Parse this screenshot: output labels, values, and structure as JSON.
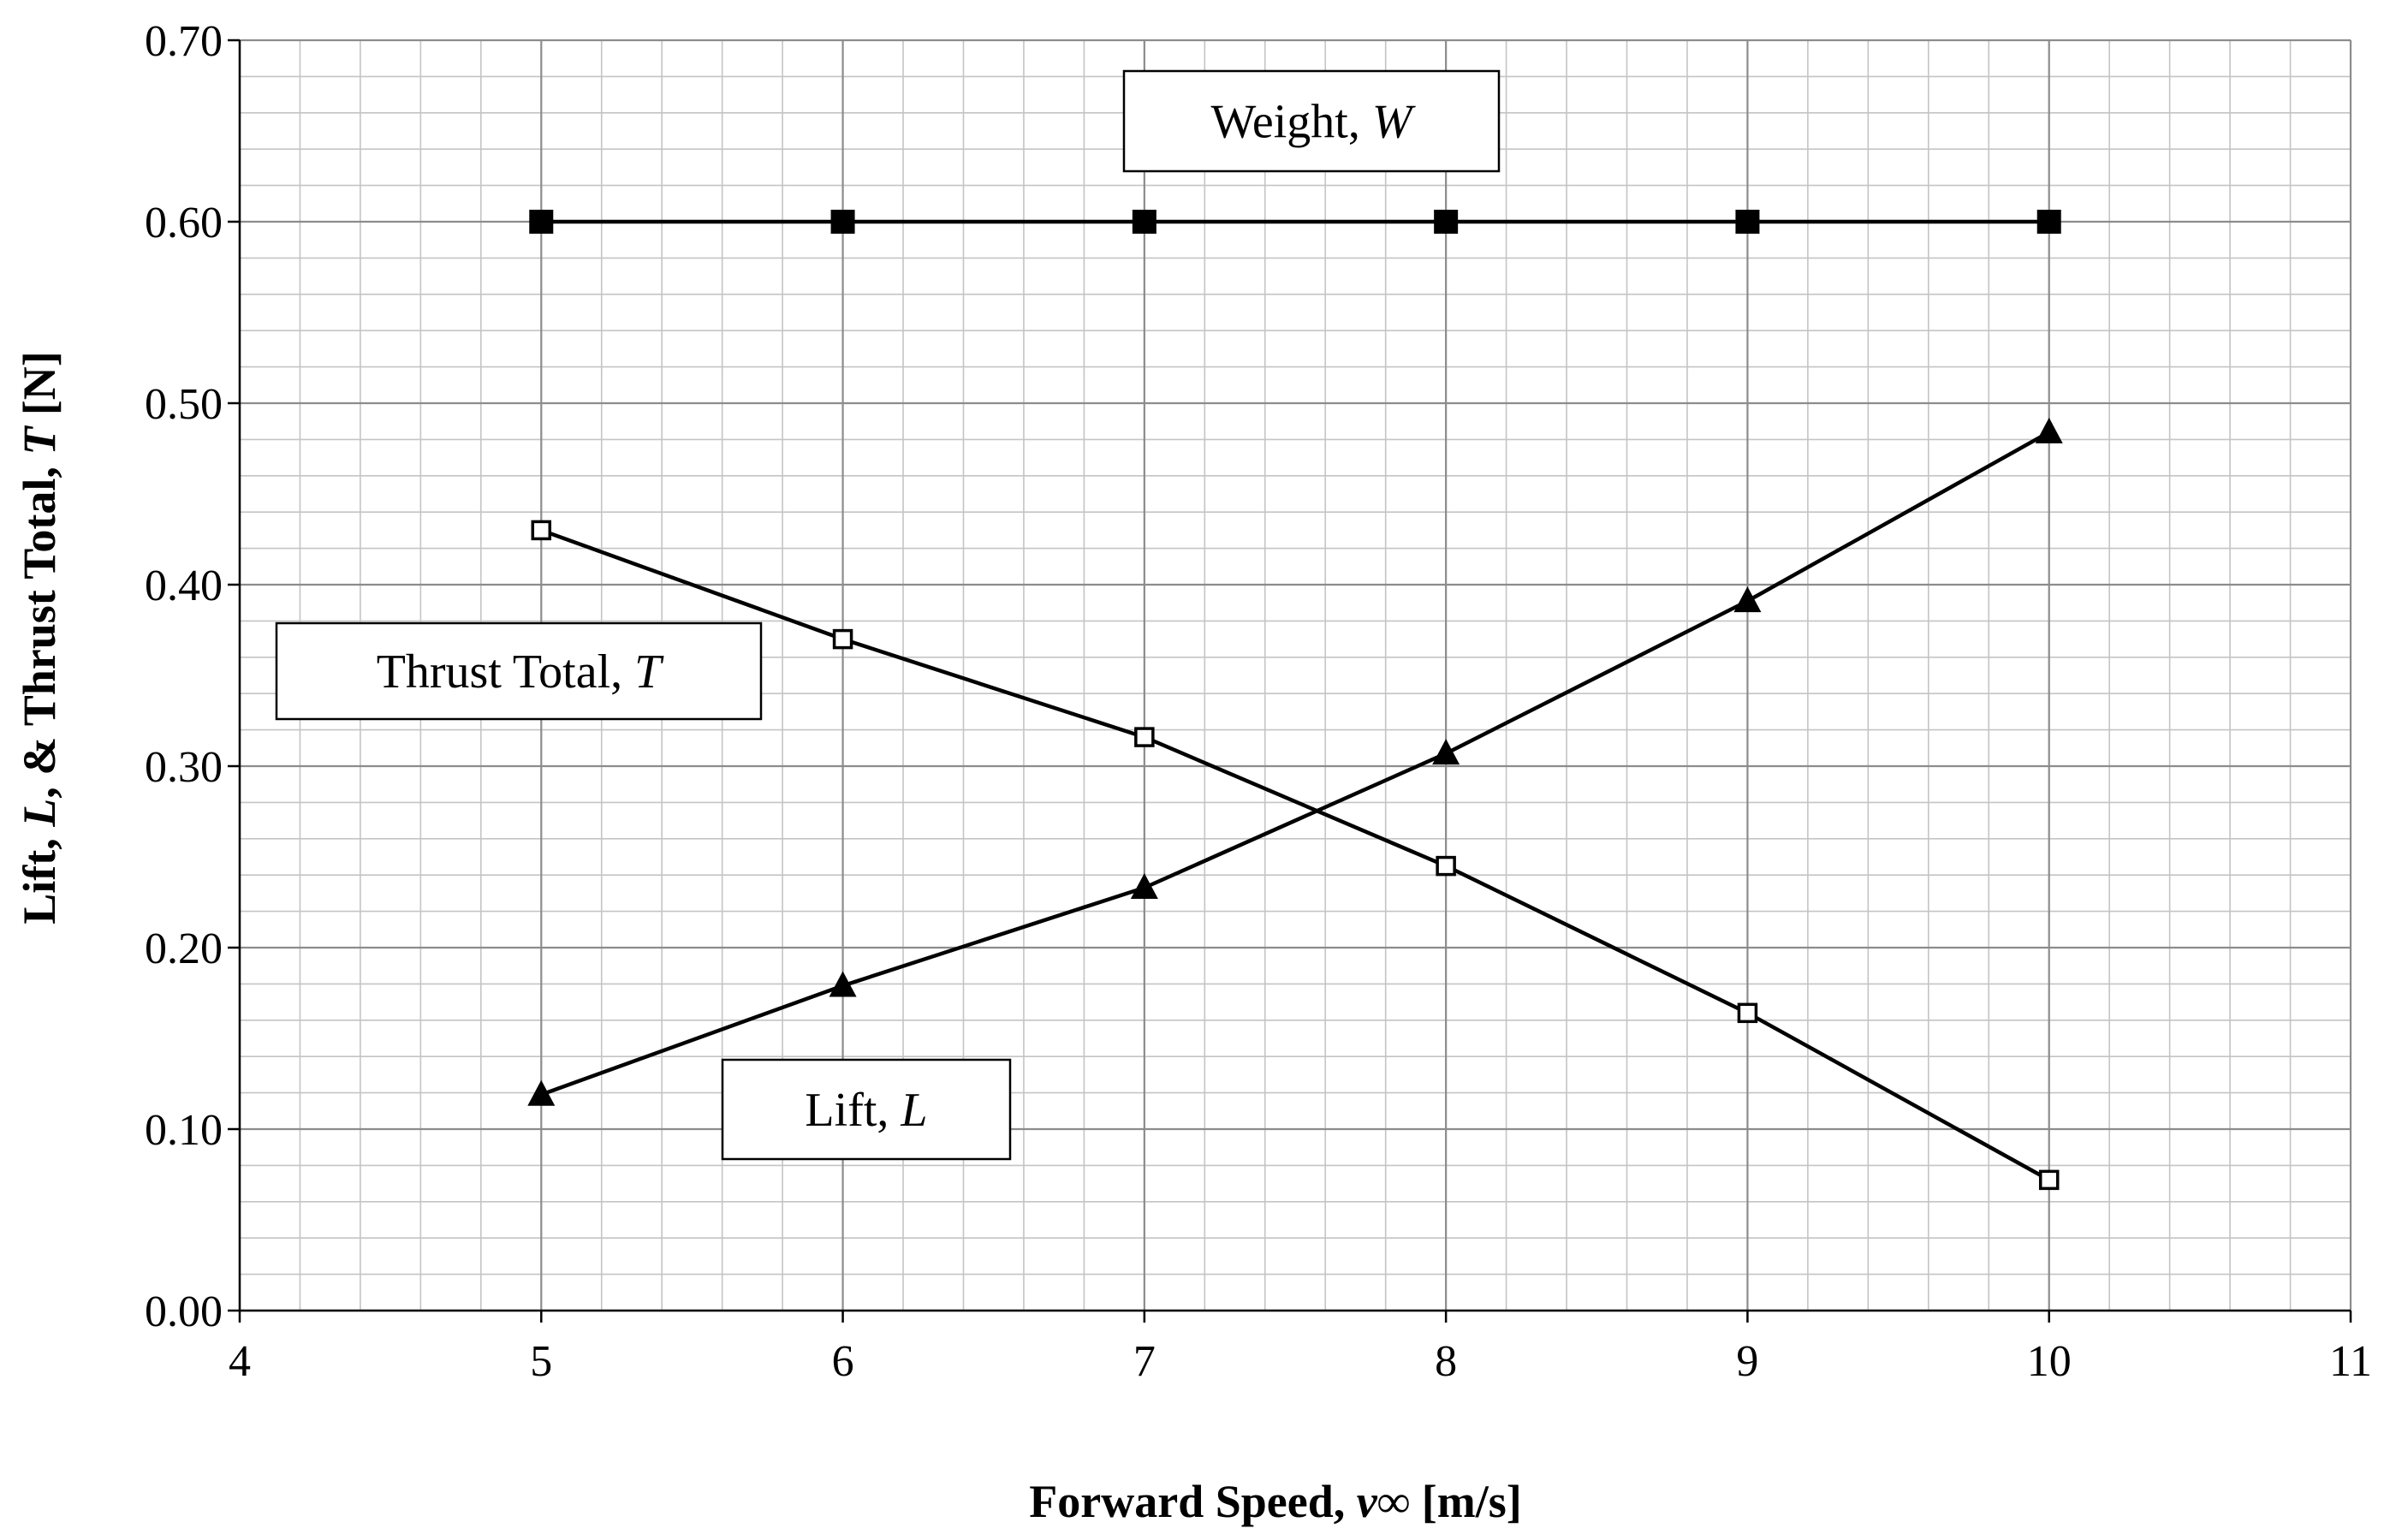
{
  "chart_data": {
    "type": "line",
    "xlabel": {
      "prefix": "Forward Speed, ",
      "var": "v",
      "sub": "∞",
      "suffix": " [m/s]"
    },
    "ylabel": {
      "p1": "Lift, ",
      "v1": "L",
      "p2": ", & Thrust Total, ",
      "v2": "T",
      "p3": " [N]"
    },
    "xlim": [
      4,
      11
    ],
    "ylim": [
      0,
      0.7
    ],
    "x_ticks": [
      "4",
      "5",
      "6",
      "7",
      "8",
      "9",
      "10",
      "11"
    ],
    "y_ticks": [
      "0.00",
      "0.10",
      "0.20",
      "0.30",
      "0.40",
      "0.50",
      "0.60",
      "0.70"
    ],
    "grid": true,
    "series": [
      {
        "name": "Weight, W",
        "marker": "filled-square",
        "x": [
          5,
          6,
          7,
          8,
          9,
          10
        ],
        "values": [
          0.6,
          0.6,
          0.6,
          0.6,
          0.6,
          0.6
        ]
      },
      {
        "name": "Thrust Total, T",
        "marker": "open-square",
        "x": [
          5,
          6,
          7,
          8,
          9,
          10
        ],
        "values": [
          0.43,
          0.37,
          0.316,
          0.245,
          0.164,
          0.072
        ]
      },
      {
        "name": "Lift, L",
        "marker": "filled-triangle",
        "x": [
          5,
          6,
          7,
          8,
          9,
          10
        ],
        "values": [
          0.119,
          0.179,
          0.233,
          0.307,
          0.391,
          0.484
        ]
      }
    ],
    "callouts": [
      {
        "prefix": "Weight, ",
        "var": "W"
      },
      {
        "prefix": "Thrust Total, ",
        "var": "T"
      },
      {
        "prefix": "Lift, ",
        "var": "L"
      }
    ]
  }
}
